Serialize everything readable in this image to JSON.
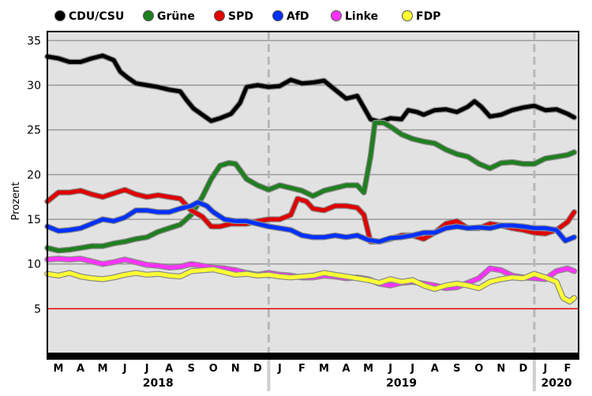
{
  "chart_data": {
    "type": "line",
    "ylabel": "Prozent",
    "ylim": [
      0,
      36
    ],
    "yticks": [
      5,
      10,
      15,
      20,
      25,
      30,
      35
    ],
    "threshold": {
      "value": 5,
      "color": "#e00000"
    },
    "months": [
      "M",
      "A",
      "M",
      "J",
      "J",
      "A",
      "S",
      "O",
      "N",
      "D",
      "J",
      "F",
      "M",
      "A",
      "M",
      "J",
      "J",
      "A",
      "S",
      "O",
      "N",
      "D",
      "J",
      "F"
    ],
    "years": [
      {
        "label": "2018",
        "start_index": 0,
        "end_index": 9
      },
      {
        "label": "2019",
        "start_index": 10,
        "end_index": 21
      },
      {
        "label": "2020",
        "start_index": 22,
        "end_index": 23
      }
    ],
    "year_boundaries": [
      10,
      22
    ],
    "x_unit": "month index from March 2018 (0 = start of March 2018)",
    "series": [
      {
        "name": "CDU/CSU",
        "color": "#000000",
        "points": [
          [
            0,
            33.2
          ],
          [
            0.5,
            33.0
          ],
          [
            1,
            32.6
          ],
          [
            1.5,
            32.6
          ],
          [
            2,
            33.0
          ],
          [
            2.5,
            33.3
          ],
          [
            3,
            32.8
          ],
          [
            3.3,
            31.5
          ],
          [
            3.6,
            30.9
          ],
          [
            4,
            30.2
          ],
          [
            4.5,
            30.0
          ],
          [
            5,
            29.8
          ],
          [
            5.5,
            29.5
          ],
          [
            6,
            29.3
          ],
          [
            6.3,
            28.3
          ],
          [
            6.6,
            27.4
          ],
          [
            7,
            26.7
          ],
          [
            7.4,
            26.0
          ],
          [
            7.8,
            26.3
          ],
          [
            8.3,
            26.8
          ],
          [
            8.7,
            28.0
          ],
          [
            9,
            29.8
          ],
          [
            9.5,
            30.0
          ],
          [
            10,
            29.8
          ],
          [
            10.5,
            29.9
          ],
          [
            11,
            30.6
          ],
          [
            11.5,
            30.2
          ],
          [
            12,
            30.3
          ],
          [
            12.5,
            30.5
          ],
          [
            13,
            29.5
          ],
          [
            13.5,
            28.5
          ],
          [
            14,
            28.8
          ],
          [
            14.3,
            27.5
          ],
          [
            14.6,
            26.2
          ],
          [
            15,
            25.9
          ],
          [
            15.5,
            26.3
          ],
          [
            16,
            26.2
          ],
          [
            16.3,
            27.2
          ],
          [
            16.7,
            27.0
          ],
          [
            17,
            26.7
          ],
          [
            17.5,
            27.2
          ],
          [
            18,
            27.3
          ],
          [
            18.5,
            27.0
          ],
          [
            19,
            27.6
          ],
          [
            19.3,
            28.2
          ],
          [
            19.6,
            27.6
          ],
          [
            20,
            26.5
          ],
          [
            20.5,
            26.7
          ],
          [
            21,
            27.2
          ],
          [
            21.5,
            27.5
          ],
          [
            22,
            27.7
          ],
          [
            22.5,
            27.2
          ],
          [
            23,
            27.3
          ],
          [
            23.5,
            26.8
          ],
          [
            23.8,
            26.4
          ]
        ]
      },
      {
        "name": "Grüne",
        "color": "#1f7f1f",
        "points": [
          [
            0,
            11.8
          ],
          [
            0.5,
            11.5
          ],
          [
            1,
            11.6
          ],
          [
            1.5,
            11.8
          ],
          [
            2,
            12.0
          ],
          [
            2.5,
            12.0
          ],
          [
            3,
            12.3
          ],
          [
            3.5,
            12.5
          ],
          [
            4,
            12.8
          ],
          [
            4.5,
            13.0
          ],
          [
            5,
            13.6
          ],
          [
            5.5,
            14.0
          ],
          [
            6,
            14.4
          ],
          [
            6.5,
            15.5
          ],
          [
            7,
            17.5
          ],
          [
            7.4,
            19.5
          ],
          [
            7.8,
            21.0
          ],
          [
            8.2,
            21.3
          ],
          [
            8.5,
            21.2
          ],
          [
            9,
            19.5
          ],
          [
            9.5,
            18.8
          ],
          [
            10,
            18.3
          ],
          [
            10.5,
            18.8
          ],
          [
            11,
            18.5
          ],
          [
            11.5,
            18.2
          ],
          [
            12,
            17.6
          ],
          [
            12.5,
            18.2
          ],
          [
            13,
            18.5
          ],
          [
            13.5,
            18.8
          ],
          [
            14,
            18.8
          ],
          [
            14.3,
            18.0
          ],
          [
            14.6,
            22.0
          ],
          [
            14.8,
            25.8
          ],
          [
            15.2,
            25.8
          ],
          [
            15.6,
            25.2
          ],
          [
            16,
            24.5
          ],
          [
            16.5,
            24.0
          ],
          [
            17,
            23.7
          ],
          [
            17.5,
            23.5
          ],
          [
            18,
            22.8
          ],
          [
            18.5,
            22.3
          ],
          [
            19,
            22.0
          ],
          [
            19.5,
            21.2
          ],
          [
            20,
            20.7
          ],
          [
            20.5,
            21.3
          ],
          [
            21,
            21.4
          ],
          [
            21.5,
            21.2
          ],
          [
            22,
            21.2
          ],
          [
            22.5,
            21.8
          ],
          [
            23,
            22.0
          ],
          [
            23.5,
            22.2
          ],
          [
            23.8,
            22.5
          ]
        ]
      },
      {
        "name": "SPD",
        "color": "#e00000",
        "points": [
          [
            0,
            17.0
          ],
          [
            0.5,
            18.0
          ],
          [
            1,
            18.0
          ],
          [
            1.5,
            18.2
          ],
          [
            2,
            17.8
          ],
          [
            2.5,
            17.5
          ],
          [
            3,
            17.9
          ],
          [
            3.5,
            18.3
          ],
          [
            4,
            17.8
          ],
          [
            4.5,
            17.5
          ],
          [
            5,
            17.7
          ],
          [
            5.5,
            17.5
          ],
          [
            6,
            17.3
          ],
          [
            6.5,
            16.0
          ],
          [
            7,
            15.3
          ],
          [
            7.4,
            14.2
          ],
          [
            7.8,
            14.2
          ],
          [
            8.3,
            14.5
          ],
          [
            8.7,
            14.5
          ],
          [
            9,
            14.5
          ],
          [
            9.5,
            14.8
          ],
          [
            10,
            15.0
          ],
          [
            10.5,
            15.0
          ],
          [
            11,
            15.5
          ],
          [
            11.3,
            17.3
          ],
          [
            11.7,
            17.0
          ],
          [
            12,
            16.2
          ],
          [
            12.5,
            16.0
          ],
          [
            13,
            16.5
          ],
          [
            13.5,
            16.5
          ],
          [
            14,
            16.3
          ],
          [
            14.3,
            15.5
          ],
          [
            14.6,
            12.5
          ],
          [
            15,
            12.5
          ],
          [
            15.5,
            12.8
          ],
          [
            16,
            13.2
          ],
          [
            16.5,
            13.2
          ],
          [
            17,
            12.8
          ],
          [
            17.5,
            13.5
          ],
          [
            18,
            14.5
          ],
          [
            18.5,
            14.8
          ],
          [
            19,
            14.0
          ],
          [
            19.5,
            14.0
          ],
          [
            20,
            14.5
          ],
          [
            20.5,
            14.3
          ],
          [
            21,
            14.0
          ],
          [
            21.5,
            13.8
          ],
          [
            22,
            13.5
          ],
          [
            22.5,
            13.4
          ],
          [
            23,
            13.8
          ],
          [
            23.5,
            14.7
          ],
          [
            23.8,
            15.8
          ]
        ]
      },
      {
        "name": "AfD",
        "color": "#0030ff",
        "points": [
          [
            0,
            14.2
          ],
          [
            0.5,
            13.7
          ],
          [
            1,
            13.8
          ],
          [
            1.5,
            14.0
          ],
          [
            2,
            14.5
          ],
          [
            2.5,
            15.0
          ],
          [
            3,
            14.8
          ],
          [
            3.5,
            15.2
          ],
          [
            4,
            16.0
          ],
          [
            4.5,
            16.0
          ],
          [
            5,
            15.8
          ],
          [
            5.5,
            15.8
          ],
          [
            6,
            16.2
          ],
          [
            6.5,
            16.5
          ],
          [
            6.8,
            16.9
          ],
          [
            7.2,
            16.5
          ],
          [
            7.5,
            15.8
          ],
          [
            8,
            15.0
          ],
          [
            8.5,
            14.8
          ],
          [
            9,
            14.8
          ],
          [
            9.5,
            14.5
          ],
          [
            10,
            14.2
          ],
          [
            10.5,
            14.0
          ],
          [
            11,
            13.8
          ],
          [
            11.5,
            13.2
          ],
          [
            12,
            13.0
          ],
          [
            12.5,
            13.0
          ],
          [
            13,
            13.2
          ],
          [
            13.5,
            13.0
          ],
          [
            14,
            13.2
          ],
          [
            14.5,
            12.7
          ],
          [
            15,
            12.5
          ],
          [
            15.5,
            12.9
          ],
          [
            16,
            13.0
          ],
          [
            16.5,
            13.2
          ],
          [
            17,
            13.5
          ],
          [
            17.5,
            13.5
          ],
          [
            18,
            14.0
          ],
          [
            18.5,
            14.2
          ],
          [
            19,
            14.0
          ],
          [
            19.5,
            14.1
          ],
          [
            20,
            14.0
          ],
          [
            20.5,
            14.3
          ],
          [
            21,
            14.3
          ],
          [
            21.5,
            14.2
          ],
          [
            22,
            14.0
          ],
          [
            22.5,
            14.0
          ],
          [
            23,
            13.8
          ],
          [
            23.4,
            12.6
          ],
          [
            23.8,
            13.0
          ]
        ]
      },
      {
        "name": "Linke",
        "color": "#ff33ff",
        "points": [
          [
            0,
            10.5
          ],
          [
            0.5,
            10.6
          ],
          [
            1,
            10.5
          ],
          [
            1.5,
            10.6
          ],
          [
            2,
            10.3
          ],
          [
            2.5,
            10.0
          ],
          [
            3,
            10.2
          ],
          [
            3.5,
            10.5
          ],
          [
            4,
            10.2
          ],
          [
            4.5,
            9.9
          ],
          [
            5,
            9.8
          ],
          [
            5.5,
            9.6
          ],
          [
            6,
            9.7
          ],
          [
            6.5,
            10.0
          ],
          [
            7,
            9.8
          ],
          [
            7.5,
            9.6
          ],
          [
            8,
            9.5
          ],
          [
            8.5,
            9.3
          ],
          [
            9,
            9.0
          ],
          [
            9.5,
            8.8
          ],
          [
            10,
            9.0
          ],
          [
            10.5,
            8.8
          ],
          [
            11,
            8.7
          ],
          [
            11.5,
            8.5
          ],
          [
            12,
            8.5
          ],
          [
            12.5,
            8.7
          ],
          [
            13,
            8.6
          ],
          [
            13.5,
            8.4
          ],
          [
            14,
            8.5
          ],
          [
            14.5,
            8.3
          ],
          [
            15,
            7.8
          ],
          [
            15.5,
            7.6
          ],
          [
            16,
            7.9
          ],
          [
            16.5,
            8.0
          ],
          [
            17,
            7.8
          ],
          [
            17.5,
            7.6
          ],
          [
            18,
            7.3
          ],
          [
            18.5,
            7.4
          ],
          [
            19,
            7.9
          ],
          [
            19.5,
            8.4
          ],
          [
            20,
            9.5
          ],
          [
            20.5,
            9.3
          ],
          [
            21,
            8.7
          ],
          [
            21.5,
            8.5
          ],
          [
            22,
            8.4
          ],
          [
            22.5,
            8.3
          ],
          [
            23,
            9.2
          ],
          [
            23.5,
            9.5
          ],
          [
            23.8,
            9.2
          ]
        ]
      },
      {
        "name": "FDP",
        "color": "#ffff33",
        "points": [
          [
            0,
            8.9
          ],
          [
            0.5,
            8.7
          ],
          [
            1,
            9.0
          ],
          [
            1.5,
            8.6
          ],
          [
            2,
            8.4
          ],
          [
            2.5,
            8.3
          ],
          [
            3,
            8.5
          ],
          [
            3.5,
            8.8
          ],
          [
            4,
            9.0
          ],
          [
            4.5,
            8.8
          ],
          [
            5,
            8.9
          ],
          [
            5.5,
            8.7
          ],
          [
            6,
            8.6
          ],
          [
            6.5,
            9.2
          ],
          [
            7,
            9.3
          ],
          [
            7.5,
            9.4
          ],
          [
            8,
            9.1
          ],
          [
            8.5,
            8.8
          ],
          [
            9,
            8.9
          ],
          [
            9.5,
            8.7
          ],
          [
            10,
            8.8
          ],
          [
            10.5,
            8.6
          ],
          [
            11,
            8.5
          ],
          [
            11.5,
            8.6
          ],
          [
            12,
            8.7
          ],
          [
            12.5,
            9.0
          ],
          [
            13,
            8.8
          ],
          [
            13.5,
            8.6
          ],
          [
            14,
            8.4
          ],
          [
            14.5,
            8.2
          ],
          [
            15,
            7.9
          ],
          [
            15.5,
            8.3
          ],
          [
            16,
            8.0
          ],
          [
            16.5,
            8.2
          ],
          [
            17,
            7.6
          ],
          [
            17.5,
            7.2
          ],
          [
            18,
            7.6
          ],
          [
            18.5,
            7.8
          ],
          [
            19,
            7.6
          ],
          [
            19.5,
            7.3
          ],
          [
            20,
            8.0
          ],
          [
            20.5,
            8.3
          ],
          [
            21,
            8.5
          ],
          [
            21.5,
            8.4
          ],
          [
            22,
            8.9
          ],
          [
            22.5,
            8.5
          ],
          [
            23,
            8.0
          ],
          [
            23.3,
            6.2
          ],
          [
            23.6,
            5.8
          ],
          [
            23.8,
            6.2
          ]
        ]
      }
    ]
  }
}
